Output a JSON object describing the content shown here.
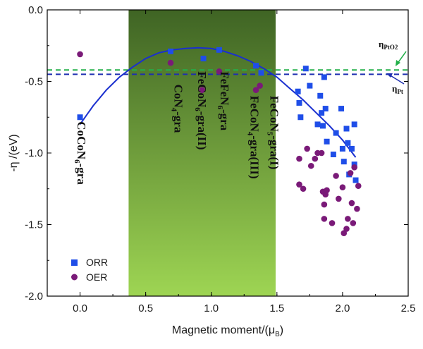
{
  "chart_data": {
    "type": "scatter",
    "title": "",
    "xlabel_main": "Magnetic moment/(μ",
    "xlabel_sub": "B",
    "xlabel_close": ")",
    "ylabel": "-η /(eV)",
    "xlim": [
      -0.25,
      2.5
    ],
    "ylim": [
      -2.0,
      0.0
    ],
    "x_ticks": [
      "0.0",
      "0.5",
      "1.0",
      "1.5",
      "2.0",
      "2.5"
    ],
    "x_tick_values": [
      0.0,
      0.5,
      1.0,
      1.5,
      2.0,
      2.5
    ],
    "y_ticks": [
      "0.0",
      "-0.5",
      "-1.0",
      "-1.5",
      "-2.0"
    ],
    "y_tick_values": [
      0.0,
      -0.5,
      -1.0,
      -1.5,
      -2.0
    ],
    "shaded_region": {
      "x_start": 0.37,
      "x_end": 1.49,
      "color_top": "#3f6424",
      "color_bottom": "#9ed553"
    },
    "series": [
      {
        "name": "ORR",
        "marker": "square",
        "color": "#1f4ee8",
        "points": [
          [
            0.0,
            -0.75
          ],
          [
            0.69,
            -0.29
          ],
          [
            0.94,
            -0.34
          ],
          [
            1.06,
            -0.28
          ],
          [
            1.34,
            -0.39
          ],
          [
            1.38,
            -0.44
          ],
          [
            1.66,
            -0.57
          ],
          [
            1.67,
            -0.65
          ],
          [
            1.68,
            -0.75
          ],
          [
            1.72,
            -0.41
          ],
          [
            1.75,
            -0.53
          ],
          [
            1.81,
            -0.8
          ],
          [
            1.83,
            -0.6
          ],
          [
            1.84,
            -0.72
          ],
          [
            1.85,
            -0.81
          ],
          [
            1.86,
            -0.47
          ],
          [
            1.87,
            -0.69
          ],
          [
            1.88,
            -0.92
          ],
          [
            1.93,
            -1.01
          ],
          [
            1.95,
            -0.86
          ],
          [
            1.99,
            -0.69
          ],
          [
            2.0,
            -0.97
          ],
          [
            2.01,
            -1.06
          ],
          [
            2.03,
            -0.83
          ],
          [
            2.04,
            -0.93
          ],
          [
            2.05,
            -1.15
          ],
          [
            2.07,
            -0.97
          ],
          [
            2.09,
            -1.08
          ],
          [
            2.09,
            -0.8
          ],
          [
            2.1,
            -1.19
          ]
        ]
      },
      {
        "name": "OER",
        "marker": "circle",
        "color": "#7a1a78",
        "points": [
          [
            0.0,
            -0.31
          ],
          [
            0.69,
            -0.37
          ],
          [
            0.93,
            -0.56
          ],
          [
            1.06,
            -0.43
          ],
          [
            1.34,
            -0.56
          ],
          [
            1.37,
            -0.53
          ],
          [
            1.67,
            -1.04
          ],
          [
            1.67,
            -1.22
          ],
          [
            1.7,
            -1.25
          ],
          [
            1.73,
            -0.97
          ],
          [
            1.76,
            -1.09
          ],
          [
            1.79,
            -1.04
          ],
          [
            1.81,
            -1.0
          ],
          [
            1.84,
            -1.0
          ],
          [
            1.85,
            -1.27
          ],
          [
            1.86,
            -1.36
          ],
          [
            1.87,
            -1.29
          ],
          [
            1.88,
            -1.26
          ],
          [
            1.86,
            -1.46
          ],
          [
            1.92,
            -1.49
          ],
          [
            1.95,
            -1.16
          ],
          [
            1.97,
            -1.32
          ],
          [
            2.0,
            -1.24
          ],
          [
            2.01,
            -1.56
          ],
          [
            2.03,
            -1.53
          ],
          [
            2.04,
            -1.46
          ],
          [
            2.06,
            -1.14
          ],
          [
            2.07,
            -1.35
          ],
          [
            2.08,
            -1.49
          ],
          [
            2.09,
            -1.1
          ],
          [
            2.11,
            -1.39
          ],
          [
            2.12,
            -1.23
          ]
        ]
      }
    ],
    "fit_curve": {
      "color": "#1a2fcf",
      "points": [
        [
          0.0,
          -0.8
        ],
        [
          0.1,
          -0.67
        ],
        [
          0.2,
          -0.56
        ],
        [
          0.3,
          -0.47
        ],
        [
          0.4,
          -0.4
        ],
        [
          0.5,
          -0.34
        ],
        [
          0.6,
          -0.3
        ],
        [
          0.7,
          -0.28
        ],
        [
          0.8,
          -0.27
        ],
        [
          0.9,
          -0.265
        ],
        [
          1.0,
          -0.27
        ],
        [
          1.1,
          -0.29
        ],
        [
          1.2,
          -0.32
        ],
        [
          1.3,
          -0.36
        ],
        [
          1.4,
          -0.41
        ],
        [
          1.5,
          -0.47
        ],
        [
          1.6,
          -0.55
        ],
        [
          1.7,
          -0.63
        ],
        [
          1.8,
          -0.72
        ],
        [
          1.9,
          -0.81
        ],
        [
          2.0,
          -0.91
        ],
        [
          2.1,
          -1.03
        ]
      ]
    },
    "reference_lines": [
      {
        "label_main": "η",
        "label_sub": "PtO2",
        "value": -0.42,
        "color": "#23b04a"
      },
      {
        "label_main": "η",
        "label_sub": "Pt",
        "value": -0.45,
        "color": "#1d2fb0"
      }
    ],
    "annotations": [
      {
        "text": "CoCoN",
        "sub": "6",
        "suffix": "-gra",
        "x": -0.02,
        "y": -0.78
      },
      {
        "text": "CoN",
        "sub": "4",
        "suffix": "-gra",
        "x": 0.72,
        "y": -0.52
      },
      {
        "text": "FeCoN",
        "sub": "6",
        "suffix": "-gra(II)",
        "x": 0.9,
        "y": -0.43
      },
      {
        "text": "FeFeN",
        "sub": "6",
        "suffix": "-gra",
        "x": 1.07,
        "y": -0.43
      },
      {
        "text": "FeCoN",
        "sub": "5",
        "suffix": "-gra(I)",
        "x": 1.45,
        "y": -0.6
      },
      {
        "text": "FeCoN",
        "sub": "4",
        "suffix": "-gra(III)",
        "x": 1.3,
        "y": -0.6
      }
    ],
    "legend": {
      "placement": "bottom-left",
      "entries": [
        {
          "label": "ORR",
          "marker": "square",
          "color": "#1f4ee8"
        },
        {
          "label": "OER",
          "marker": "circle",
          "color": "#7a1a78"
        }
      ]
    }
  }
}
